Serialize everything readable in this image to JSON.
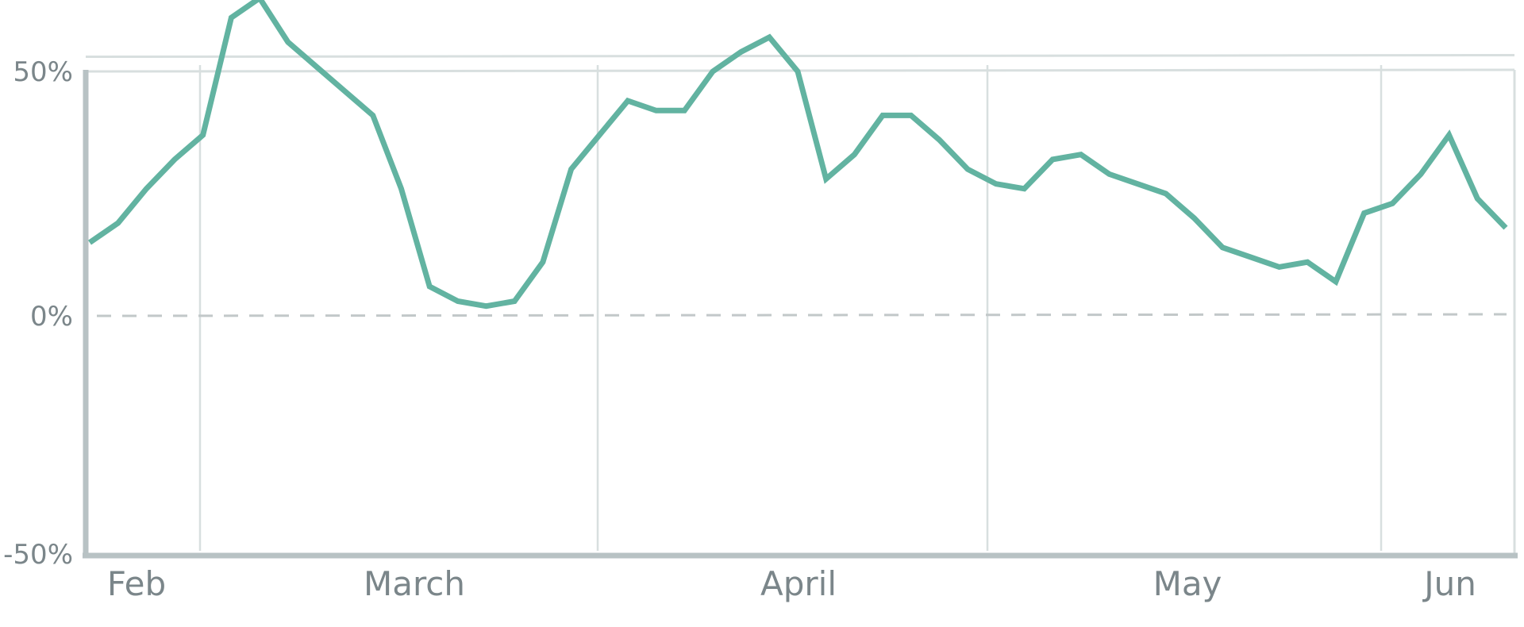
{
  "chart_data": {
    "type": "line",
    "title": "",
    "xlabel": "",
    "ylabel": "",
    "x_tick_labels": [
      "Feb",
      "March",
      "April",
      "May",
      "Jun"
    ],
    "y_tick_labels": [
      "50%",
      "0%",
      "-50%"
    ],
    "y_ticks": [
      50,
      0,
      -50
    ],
    "ylim": [
      -50,
      53
    ],
    "grid": true,
    "reference_line": {
      "value": 0,
      "style": "dashed"
    },
    "colors": {
      "line": "#62b3a1",
      "axis": "#b8c2c4",
      "grid": "#d8dfdf",
      "zero": "#c2c8c9",
      "tick": "#7b868a"
    },
    "series": [
      {
        "values": [
          15,
          19,
          26,
          32,
          37,
          61,
          65,
          56,
          51,
          46,
          41,
          26,
          6,
          3,
          2,
          3,
          11,
          30,
          37,
          44,
          42,
          42,
          50,
          54,
          57,
          50,
          28,
          33,
          41,
          41,
          36,
          30,
          27,
          26,
          32,
          33,
          29,
          27,
          25,
          20,
          14,
          12,
          10,
          11,
          7,
          21,
          23,
          29,
          37,
          24,
          18
        ]
      }
    ]
  }
}
